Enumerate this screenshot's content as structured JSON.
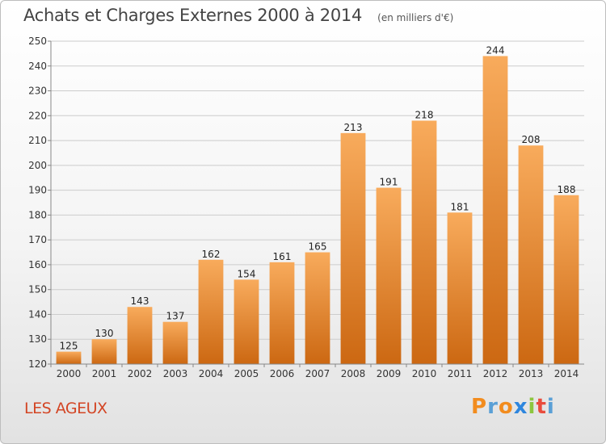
{
  "header": {
    "title": "Achats et Charges Externes 2000 à 2014",
    "unit": "(en milliers d'€)"
  },
  "commune": "LES AGEUX",
  "logo": {
    "text": "Proxiti",
    "letters": [
      "P",
      "r",
      "o",
      "x",
      "i",
      "t",
      "i"
    ],
    "colors": [
      "#f28c1e",
      "#5aa0d6",
      "#f28c1e",
      "#2e86de",
      "#8cc63f",
      "#e94c3d",
      "#5aa0d6"
    ]
  },
  "colors": {
    "bar_light": "#f8ab5c",
    "bar_dark": "#cc6812",
    "title": "#444444",
    "commune": "#d34524"
  },
  "chart_data": {
    "type": "bar",
    "categories": [
      "2000",
      "2001",
      "2002",
      "2003",
      "2004",
      "2005",
      "2006",
      "2007",
      "2008",
      "2009",
      "2010",
      "2011",
      "2012",
      "2013",
      "2014"
    ],
    "values": [
      125,
      130,
      143,
      137,
      162,
      154,
      161,
      165,
      213,
      191,
      218,
      181,
      244,
      208,
      188
    ],
    "yticks": [
      120,
      130,
      140,
      150,
      160,
      170,
      180,
      190,
      200,
      210,
      220,
      230,
      240,
      250
    ],
    "ylim": [
      120,
      250
    ],
    "grid": true,
    "title": "Achats et Charges Externes 2000 à 2014",
    "xlabel": "",
    "ylabel": ""
  }
}
